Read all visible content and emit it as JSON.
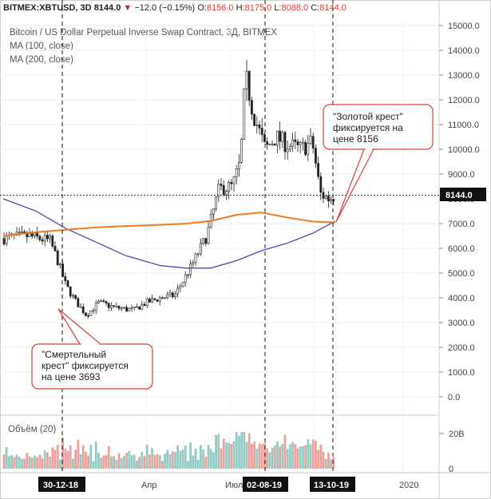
{
  "header": {
    "symbol": "BITMEX:XBTUSD, 3D",
    "last": "8144.0",
    "change": "−12.0 (−0.15%)",
    "open_label": "O:",
    "open": "8156.0",
    "high_label": "H:",
    "high": "8175.0",
    "low_label": "L:",
    "low": "8088.0",
    "close_label": "C:",
    "close": "8144.0"
  },
  "legend": {
    "title": "Bitcoin / US Dollar Perpetual Inverse Swap Contract, 3Д, BITMEX",
    "ma100": "MA (100, close)",
    "ma200": "MA (200, close)"
  },
  "price_badge": "8144.0",
  "annotations": {
    "golden_cross": [
      "\"Золотой крест\"",
      "фиксируется на",
      "цене 8156"
    ],
    "death_cross": [
      "\"Смертельный",
      "крест\" фиксируется",
      "на цене 3693"
    ]
  },
  "volume": {
    "label": "Объём (20)",
    "axis_ticks": [
      "20B",
      "0"
    ]
  },
  "x_axis": {
    "labels": [
      "Апр",
      "Июл",
      "2020"
    ],
    "markers": [
      "30-12-18",
      "02-08-19",
      "13-10-19"
    ]
  },
  "colors": {
    "up": "#26a69a",
    "down": "#ef5350",
    "vol_up": "#94cbc4",
    "vol_down": "#f0a09a",
    "ma100": "#4a4ab0",
    "ma200": "#ee7a22",
    "annotation": "#e03c3c"
  },
  "chart_data": {
    "type": "line",
    "y_ticks": [
      0,
      1000,
      2000,
      3000,
      4000,
      5000,
      6000,
      7000,
      8000,
      9000,
      10000,
      11000,
      12000,
      13000,
      14000,
      15000
    ],
    "y_tick_labels": [
      "0.0",
      "1000.0",
      "2000.0",
      "3000.0",
      "4000.0",
      "5000.0",
      "6000.0",
      "7000.0",
      "8000.0",
      "9000.0",
      "10000.0",
      "11000.0",
      "12000.0",
      "13000.0",
      "14000.0",
      "15000.0"
    ],
    "ylim": [
      -800,
      15400
    ],
    "price_line": 8144,
    "series": [
      {
        "x": [
          "2018-09-05",
          "2018-10-05",
          "2018-11-01",
          "2018-11-10",
          "2018-11-20",
          "2018-12-01",
          "2018-12-15",
          "2018-12-30",
          "2019-01-20",
          "2019-02-10",
          "2019-02-25",
          "2019-03-15",
          "2019-04-01",
          "2019-04-20",
          "2019-05-10",
          "2019-05-25",
          "2019-06-10",
          "2019-06-20",
          "2019-06-26",
          "2019-07-05",
          "2019-07-20",
          "2019-08-02",
          "2019-08-15",
          "2019-09-01",
          "2019-09-15",
          "2019-09-25",
          "2019-10-05",
          "2019-10-13"
        ],
        "values": [
          6400,
          6500,
          6300,
          5500,
          4500,
          3900,
          3300,
          3800,
          3600,
          3500,
          3800,
          4000,
          4100,
          5200,
          6500,
          8400,
          8500,
          9500,
          13000,
          11500,
          10000,
          10500,
          10200,
          10000,
          10300,
          8200,
          8000,
          8144
        ]
      },
      {
        "name": "MA (100, close)",
        "x": [
          "2018-09-05",
          "2018-10-15",
          "2018-11-20",
          "2018-12-30",
          "2019-02-01",
          "2019-03-15",
          "2019-04-15",
          "2019-05-15",
          "2019-06-15",
          "2019-07-15",
          "2019-08-15",
          "2019-09-15",
          "2019-10-13"
        ],
        "values": [
          8000,
          7500,
          6800,
          6200,
          5700,
          5300,
          5200,
          5200,
          5500,
          5900,
          6200,
          6600,
          7100
        ]
      },
      {
        "name": "MA (200, close)",
        "x": [
          "2018-09-05",
          "2018-10-15",
          "2018-11-20",
          "2018-12-30",
          "2019-02-01",
          "2019-03-15",
          "2019-04-15",
          "2019-05-15",
          "2019-06-15",
          "2019-07-15",
          "2019-08-15",
          "2019-09-15",
          "2019-10-13"
        ],
        "values": [
          6500,
          6650,
          6750,
          6850,
          6900,
          6950,
          7000,
          7100,
          7350,
          7450,
          7250,
          7080,
          7050
        ]
      }
    ]
  }
}
